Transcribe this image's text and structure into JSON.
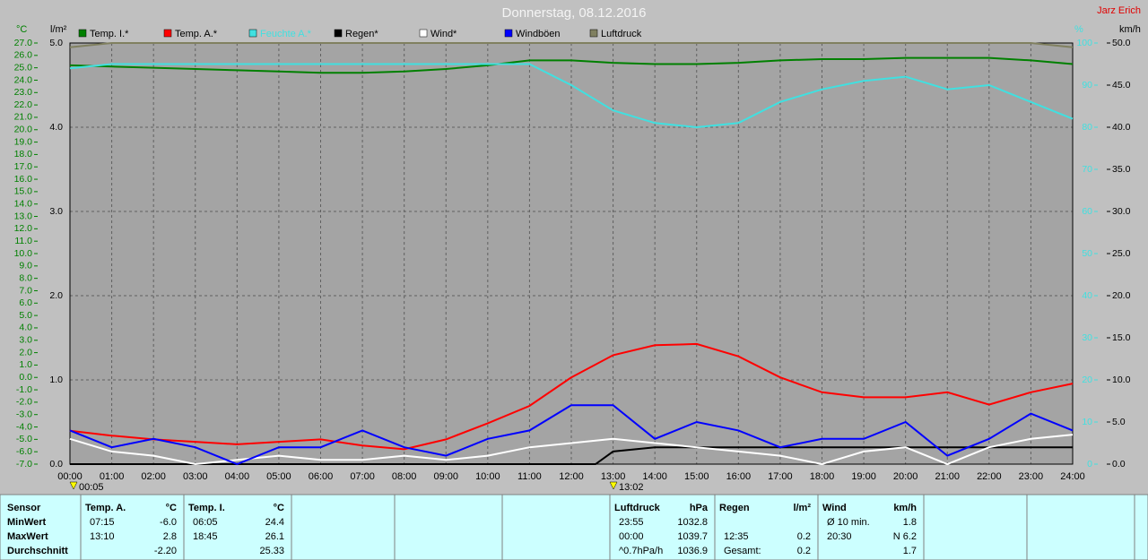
{
  "chart_data": {
    "type": "line",
    "title": "Donnerstag, 08.12.2016",
    "subtitle": "Jarz Erich",
    "ylabel": "°C",
    "y2label": "l/m²",
    "y3label": "%",
    "y4label": "km/h",
    "annotations": [
      "00:05",
      "13:02"
    ],
    "grid": true,
    "xlim": [
      0,
      24
    ],
    "xticks": [
      {
        "value": 0,
        "label": "00:00"
      },
      {
        "value": 1,
        "label": "01:00"
      },
      {
        "value": 2,
        "label": "02:00"
      },
      {
        "value": 3,
        "label": "03:00"
      },
      {
        "value": 4,
        "label": "04:00"
      },
      {
        "value": 5,
        "label": "05:00"
      },
      {
        "value": 6,
        "label": "06:00"
      },
      {
        "value": 7,
        "label": "07:00"
      },
      {
        "value": 8,
        "label": "08:00"
      },
      {
        "value": 9,
        "label": "09:00"
      },
      {
        "value": 10,
        "label": "10:00"
      },
      {
        "value": 11,
        "label": "11:00"
      },
      {
        "value": 12,
        "label": "12:00"
      },
      {
        "value": 13,
        "label": "13:00"
      },
      {
        "value": 14,
        "label": "14:00"
      },
      {
        "value": 15,
        "label": "15:00"
      },
      {
        "value": 16,
        "label": "16:00"
      },
      {
        "value": 17,
        "label": "17:00"
      },
      {
        "value": 18,
        "label": "18:00"
      },
      {
        "value": 19,
        "label": "19:00"
      },
      {
        "value": 20,
        "label": "20:00"
      },
      {
        "value": 21,
        "label": "21:00"
      },
      {
        "value": 22,
        "label": "22:00"
      },
      {
        "value": 23,
        "label": "23:00"
      },
      {
        "value": 24,
        "label": "24:00"
      }
    ],
    "ylim": [
      -7,
      27
    ],
    "yticks": [
      {
        "value": -7,
        "label": "-7.0"
      },
      {
        "value": -6,
        "label": "-6.0"
      },
      {
        "value": -5,
        "label": "-5.0"
      },
      {
        "value": -4,
        "label": "-4.0"
      },
      {
        "value": -3,
        "label": "-3.0"
      },
      {
        "value": -2,
        "label": "-2.0"
      },
      {
        "value": -1,
        "label": "-1.0"
      },
      {
        "value": 0,
        "label": "0.0"
      },
      {
        "value": 1,
        "label": "1.0"
      },
      {
        "value": 2,
        "label": "2.0"
      },
      {
        "value": 3,
        "label": "3.0"
      },
      {
        "value": 4,
        "label": "4.0"
      },
      {
        "value": 5,
        "label": "5.0"
      },
      {
        "value": 6,
        "label": "6.0"
      },
      {
        "value": 7,
        "label": "7.0"
      },
      {
        "value": 8,
        "label": "8.0"
      },
      {
        "value": 9,
        "label": "9.0"
      },
      {
        "value": 10,
        "label": "10.0"
      },
      {
        "value": 11,
        "label": "11.0"
      },
      {
        "value": 12,
        "label": "12.0"
      },
      {
        "value": 13,
        "label": "13.0"
      },
      {
        "value": 14,
        "label": "14.0"
      },
      {
        "value": 15,
        "label": "15.0"
      },
      {
        "value": 16,
        "label": "16.0"
      },
      {
        "value": 17,
        "label": "17.0"
      },
      {
        "value": 18,
        "label": "18.0"
      },
      {
        "value": 19,
        "label": "19.0"
      },
      {
        "value": 20,
        "label": "20.0"
      },
      {
        "value": 21,
        "label": "21.0"
      },
      {
        "value": 22,
        "label": "22.0"
      },
      {
        "value": 23,
        "label": "23.0"
      },
      {
        "value": 24,
        "label": "24.0"
      },
      {
        "value": 25,
        "label": "25.0"
      },
      {
        "value": 26,
        "label": "26.0"
      },
      {
        "value": 27,
        "label": "27.0"
      }
    ],
    "y2lim": [
      0,
      5
    ],
    "y2ticks": [
      {
        "value": 0,
        "label": "0.0"
      },
      {
        "value": 1,
        "label": "1.0"
      },
      {
        "value": 2,
        "label": "2.0"
      },
      {
        "value": 3,
        "label": "3.0"
      },
      {
        "value": 4,
        "label": "4.0"
      },
      {
        "value": 5,
        "label": "5.0"
      }
    ],
    "y3lim": [
      0,
      100
    ],
    "y3ticks": [
      0,
      10,
      20,
      30,
      40,
      50,
      60,
      70,
      80,
      90,
      100
    ],
    "y4lim": [
      0,
      50
    ],
    "y4ticks": [
      {
        "value": 0,
        "label": "0.0"
      },
      {
        "value": 5,
        "label": "5.0"
      },
      {
        "value": 10,
        "label": "10.0"
      },
      {
        "value": 15,
        "label": "15.0"
      },
      {
        "value": 20,
        "label": "20.0"
      },
      {
        "value": 25,
        "label": "25.0"
      },
      {
        "value": 30,
        "label": "30.0"
      },
      {
        "value": 35,
        "label": "35.0"
      },
      {
        "value": 40,
        "label": "40.0"
      },
      {
        "value": 45,
        "label": "45.0"
      },
      {
        "value": 50,
        "label": "50.0"
      }
    ],
    "x": [
      0,
      1,
      2,
      3,
      4,
      5,
      6,
      7,
      8,
      9,
      10,
      11,
      12,
      13,
      14,
      15,
      16,
      17,
      18,
      19,
      20,
      21,
      22,
      23,
      24
    ],
    "series": [
      {
        "name": "Temp. I.*",
        "color": "#008000",
        "axis": "y",
        "values": [
          25.2,
          25.1,
          25.0,
          24.9,
          24.8,
          24.7,
          24.6,
          24.6,
          24.7,
          24.9,
          25.2,
          25.6,
          25.6,
          25.4,
          25.3,
          25.3,
          25.4,
          25.6,
          25.7,
          25.7,
          25.8,
          25.8,
          25.8,
          25.6,
          25.3
        ]
      },
      {
        "name": "Temp. A.*",
        "color": "#ff0000",
        "axis": "y",
        "values": [
          -4.3,
          -4.7,
          -5.0,
          -5.2,
          -5.4,
          -5.2,
          -5.0,
          -5.5,
          -5.8,
          -5.0,
          -3.7,
          -2.3,
          0.0,
          1.8,
          2.6,
          2.7,
          1.7,
          0.0,
          -1.2,
          -1.6,
          -1.6,
          -1.2,
          -2.2,
          -1.2,
          -0.5
        ]
      },
      {
        "name": "Feuchte A.*",
        "color": "#40e0e0",
        "axis": "y3",
        "values": [
          94,
          95,
          95,
          95,
          95,
          95,
          95,
          95,
          95,
          95,
          95,
          95,
          90,
          84,
          81,
          80,
          81,
          86,
          89,
          91,
          92,
          89,
          90,
          86,
          82
        ]
      },
      {
        "name": "Regen*",
        "color": "#000000",
        "axis": "y2",
        "x": [
          0,
          12.58,
          13,
          14,
          15,
          16,
          17,
          18,
          19,
          20,
          21,
          22,
          23,
          24
        ],
        "values": [
          0,
          0,
          0.15,
          0.2,
          0.2,
          0.2,
          0.2,
          0.2,
          0.2,
          0.2,
          0.2,
          0.2,
          0.2,
          0.2
        ]
      },
      {
        "name": "Wind*",
        "color": "#ffffff",
        "axis": "y4",
        "values": [
          3,
          1.5,
          1,
          0,
          0.5,
          1,
          0.5,
          0.5,
          1,
          0.5,
          1,
          2,
          2.5,
          3,
          2.5,
          2,
          1.5,
          1,
          0,
          1.5,
          2,
          0,
          2,
          3,
          3.5
        ]
      },
      {
        "name": "Windböen",
        "color": "#0000ff",
        "axis": "y4",
        "values": [
          4,
          2,
          3,
          2,
          0,
          2,
          2,
          4,
          2,
          1,
          3,
          4,
          7,
          7,
          3,
          5,
          4,
          2,
          3,
          3,
          5,
          1,
          3,
          6,
          4
        ]
      },
      {
        "name": "Luftdruck",
        "color": "#808060",
        "axis": "y3",
        "values": [
          99,
          100,
          100,
          100,
          100,
          100,
          100,
          100,
          100,
          100,
          100,
          100,
          100,
          100,
          100,
          100,
          100,
          100,
          100,
          100,
          100,
          100,
          100,
          100,
          99
        ]
      }
    ]
  },
  "table": {
    "label_column": [
      "Sensor",
      "MinWert",
      "MaxWert",
      "Durchschnitt"
    ],
    "panels": [
      {
        "name": "Temp. A.",
        "unit": "°C",
        "rows": [
          [
            "07:15",
            "-6.0"
          ],
          [
            "13:10",
            "2.8"
          ],
          [
            null,
            "-2.20"
          ]
        ]
      },
      {
        "name": "Temp. I.",
        "unit": "°C",
        "rows": [
          [
            "06:05",
            "24.4"
          ],
          [
            "18:45",
            "26.1"
          ],
          [
            null,
            "25.33"
          ]
        ]
      },
      {
        "name": "Luftdruck",
        "unit": "hPa",
        "rows": [
          [
            "23:55",
            "1032.8"
          ],
          [
            "00:00",
            "1039.7"
          ],
          [
            "^0.7hPa/h",
            "1036.9"
          ]
        ]
      },
      {
        "name": "Regen",
        "unit": "l/m²",
        "rows": [
          [
            null,
            null
          ],
          [
            "12:35",
            "0.2"
          ],
          [
            "Gesamt:",
            "0.2"
          ]
        ]
      },
      {
        "name": "Wind",
        "unit": "km/h",
        "rows": [
          [
            "Ø 10 min.",
            "1.8"
          ],
          [
            "20:30",
            "N 6.2"
          ],
          [
            null,
            "1.7"
          ]
        ]
      }
    ]
  }
}
